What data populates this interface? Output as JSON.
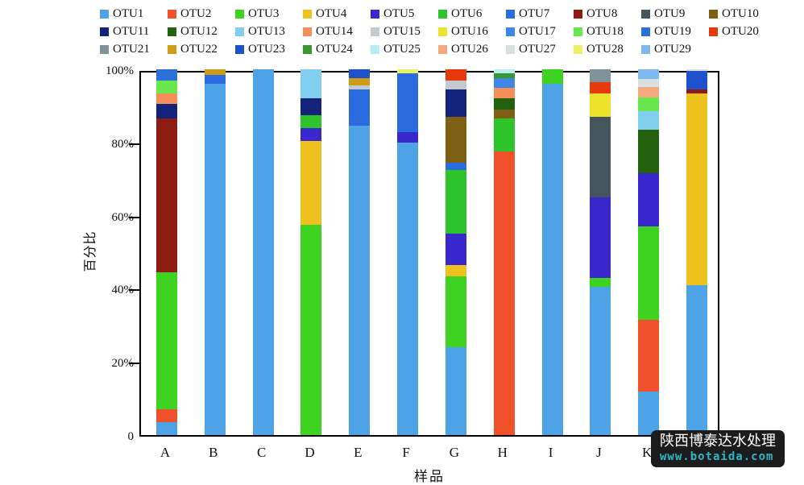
{
  "watermark": {
    "line1": "陕西博泰达水处理",
    "line2": "www.botaida.com",
    "bg_color": "#1c1c1c",
    "line2_color": "#2bb5cb"
  },
  "chart_data": {
    "type": "bar",
    "stacked": true,
    "title": "",
    "xlabel": "样品",
    "ylabel": "百分比",
    "ylim": [
      0,
      100
    ],
    "grid": false,
    "legend_position": "top",
    "legend_columns": 10,
    "y_ticks": [
      {
        "value": 100,
        "label": "100%"
      },
      {
        "value": 80,
        "label": "80%"
      },
      {
        "value": 60,
        "label": "60%"
      },
      {
        "value": 40,
        "label": "40%"
      },
      {
        "value": 20,
        "label": "20%"
      },
      {
        "value": 0,
        "label": "0"
      }
    ],
    "categories": [
      "A",
      "B",
      "C",
      "D",
      "E",
      "F",
      "G",
      "H",
      "I",
      "J",
      "K",
      "L"
    ],
    "series": [
      {
        "name": "OTU1",
        "color": "#4DA3E6",
        "values": [
          3.5,
          96,
          100,
          0,
          84.5,
          80,
          24,
          0,
          96,
          40.5,
          12,
          41
        ]
      },
      {
        "name": "OTU2",
        "color": "#F0512B",
        "values": [
          3.5,
          0,
          0,
          0,
          0,
          0,
          0,
          77.5,
          0,
          0,
          19.5,
          0
        ]
      },
      {
        "name": "OTU3",
        "color": "#3FD321",
        "values": [
          37.5,
          0,
          0,
          57.5,
          0,
          0,
          19.5,
          0,
          4,
          2.5,
          25.5,
          0
        ]
      },
      {
        "name": "OTU4",
        "color": "#EFC11E",
        "values": [
          0,
          0,
          0,
          23,
          0,
          0,
          3,
          0,
          0,
          0,
          0,
          52.5
        ]
      },
      {
        "name": "OTU5",
        "color": "#3929CC",
        "values": [
          0,
          0,
          0,
          3.5,
          0,
          2.8,
          8.5,
          0,
          0,
          22,
          14.5,
          0
        ]
      },
      {
        "name": "OTU6",
        "color": "#2EC42B",
        "values": [
          0,
          0,
          0,
          3.5,
          0,
          0,
          17.5,
          9,
          0,
          0,
          0,
          0
        ]
      },
      {
        "name": "OTU7",
        "color": "#2B6BE0",
        "values": [
          0,
          2.5,
          0,
          0,
          10,
          16,
          2,
          0,
          0,
          0,
          0,
          0
        ]
      },
      {
        "name": "OTU8",
        "color": "#8D1B12",
        "values": [
          42,
          0,
          0,
          0,
          0,
          0,
          0,
          0,
          0,
          0,
          0,
          1
        ]
      },
      {
        "name": "OTU9",
        "color": "#44555D",
        "values": [
          0,
          0,
          0,
          0,
          0,
          0,
          0,
          0,
          0,
          22,
          0,
          0
        ]
      },
      {
        "name": "OTU10",
        "color": "#7D6013",
        "values": [
          0,
          0,
          0,
          0,
          0,
          0,
          12.5,
          2.5,
          0,
          0,
          0,
          0
        ]
      },
      {
        "name": "OTU11",
        "color": "#13227B",
        "values": [
          4,
          0,
          0,
          4.5,
          0,
          0,
          7.5,
          0,
          0,
          0,
          0,
          0
        ]
      },
      {
        "name": "OTU12",
        "color": "#24610F",
        "values": [
          0,
          0,
          0,
          0,
          0,
          0,
          0,
          3,
          0,
          0,
          12,
          0
        ]
      },
      {
        "name": "OTU13",
        "color": "#80CFF0",
        "values": [
          0,
          0,
          0,
          8,
          0,
          0,
          0,
          0,
          0,
          0,
          5,
          0
        ]
      },
      {
        "name": "OTU14",
        "color": "#F58E58",
        "values": [
          3,
          0,
          0,
          0,
          0,
          0,
          0,
          3,
          0,
          0,
          0,
          0
        ]
      },
      {
        "name": "OTU15",
        "color": "#C3CBCE",
        "values": [
          0,
          0,
          0,
          0,
          1,
          0,
          2.5,
          0,
          0,
          0,
          0,
          0
        ]
      },
      {
        "name": "OTU16",
        "color": "#EDE32B",
        "values": [
          0,
          0,
          0,
          0,
          0,
          0,
          0,
          0,
          0,
          6.5,
          0,
          0
        ]
      },
      {
        "name": "OTU17",
        "color": "#3E86E8",
        "values": [
          0,
          0,
          0,
          0,
          0,
          0,
          0,
          2.5,
          0,
          0,
          0,
          0
        ]
      },
      {
        "name": "OTU18",
        "color": "#68E84E",
        "values": [
          3.5,
          0,
          0,
          0,
          0,
          0,
          0,
          0,
          0,
          0,
          3.8,
          0
        ]
      },
      {
        "name": "OTU19",
        "color": "#2A70D8",
        "values": [
          3,
          0,
          0,
          0,
          0,
          0,
          0,
          0,
          0,
          0,
          0,
          0
        ]
      },
      {
        "name": "OTU20",
        "color": "#E8390E",
        "values": [
          0,
          0,
          0,
          0,
          0,
          0,
          3,
          0,
          0,
          3,
          0,
          0
        ]
      },
      {
        "name": "OTU21",
        "color": "#7E939A",
        "values": [
          0,
          0,
          0,
          0,
          0,
          0,
          0,
          0,
          0,
          3.5,
          0,
          0
        ]
      },
      {
        "name": "OTU22",
        "color": "#CE9C17",
        "values": [
          0,
          1.5,
          0,
          0,
          2,
          0,
          0,
          0,
          0,
          0,
          0,
          0
        ]
      },
      {
        "name": "OTU23",
        "color": "#1D52CC",
        "values": [
          0,
          0,
          0,
          0,
          2.5,
          0,
          0,
          0,
          0,
          0,
          0,
          5
        ]
      },
      {
        "name": "OTU24",
        "color": "#399630",
        "values": [
          0,
          0,
          0,
          0,
          0,
          0,
          0,
          1.5,
          0,
          0,
          0,
          0
        ]
      },
      {
        "name": "OTU25",
        "color": "#B9EDF5",
        "values": [
          0,
          0,
          0,
          0,
          0,
          0,
          0,
          1,
          0,
          0,
          0,
          0
        ]
      },
      {
        "name": "OTU26",
        "color": "#F5A87E",
        "values": [
          0,
          0,
          0,
          0,
          0,
          0,
          0,
          0,
          0,
          0,
          2.9,
          0
        ]
      },
      {
        "name": "OTU27",
        "color": "#DADFE1",
        "values": [
          0,
          0,
          0,
          0,
          0,
          0,
          0,
          0,
          0,
          0,
          2.2,
          0.5
        ]
      },
      {
        "name": "OTU28",
        "color": "#EDF05F",
        "values": [
          0,
          0,
          0,
          0,
          0,
          1.2,
          0,
          0,
          0,
          0,
          0,
          0
        ]
      },
      {
        "name": "OTU29",
        "color": "#7EB9ED",
        "values": [
          0,
          0,
          0,
          0,
          0,
          0,
          0,
          0,
          0,
          0,
          2.6,
          0
        ]
      }
    ]
  }
}
